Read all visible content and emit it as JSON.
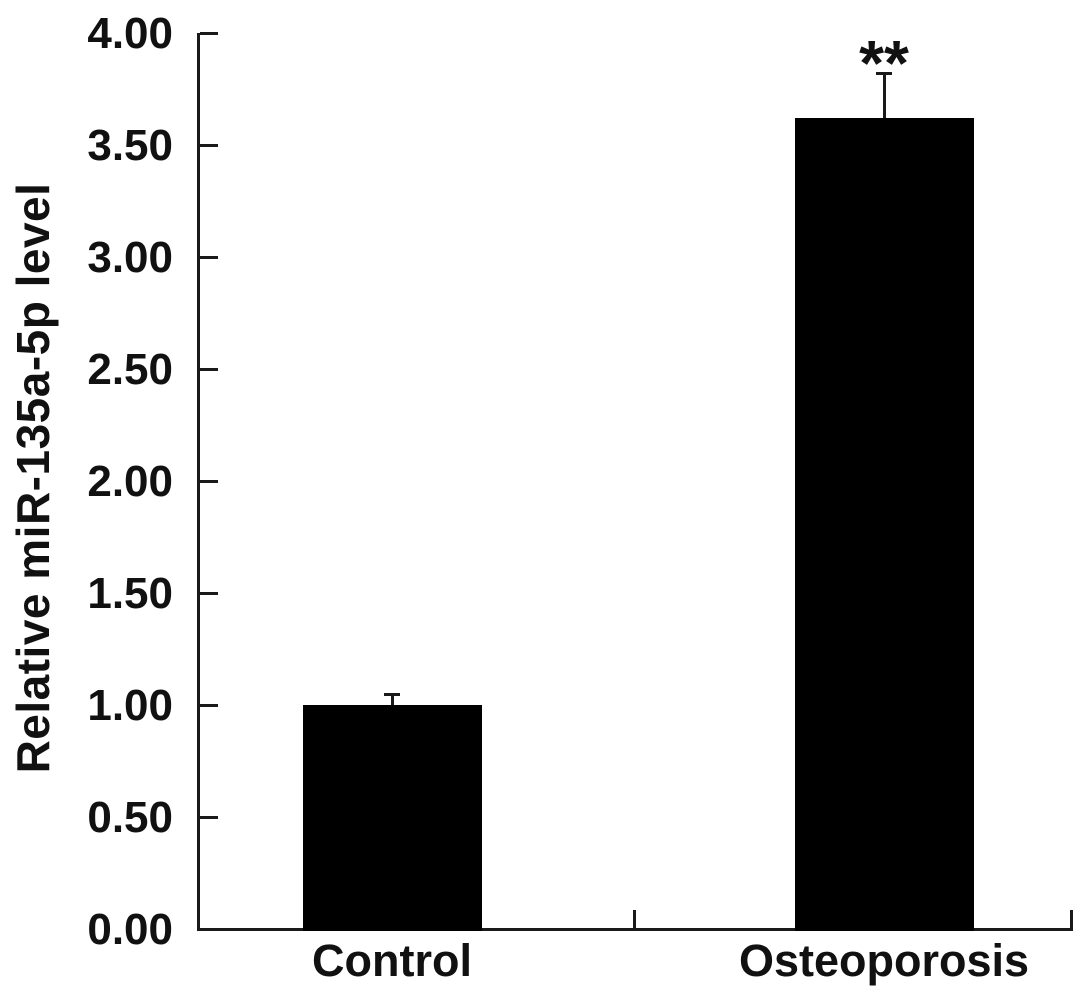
{
  "figure": {
    "background_color": "#ffffff",
    "ink_color": "#000000"
  },
  "chart_data": {
    "type": "bar",
    "title": "",
    "xlabel": "",
    "ylabel": "Relative miR-135a-5p level",
    "categories": [
      "Control",
      "Osteoporosis"
    ],
    "values": [
      1.0,
      3.62
    ],
    "errors": [
      0.05,
      0.2
    ],
    "error_bar_direction": "upper",
    "annotations": [
      {
        "category_index": 1,
        "text": "**",
        "meaning": "significance-marker"
      }
    ],
    "ylim": [
      0.0,
      4.0
    ],
    "ytick_step": 0.5,
    "ytick_labels": [
      "0.00",
      "0.50",
      "1.00",
      "1.50",
      "2.00",
      "2.50",
      "3.00",
      "3.50",
      "4.00"
    ],
    "bar_color": "#000000",
    "grid": false,
    "legend": null,
    "tick_direction": "in"
  }
}
